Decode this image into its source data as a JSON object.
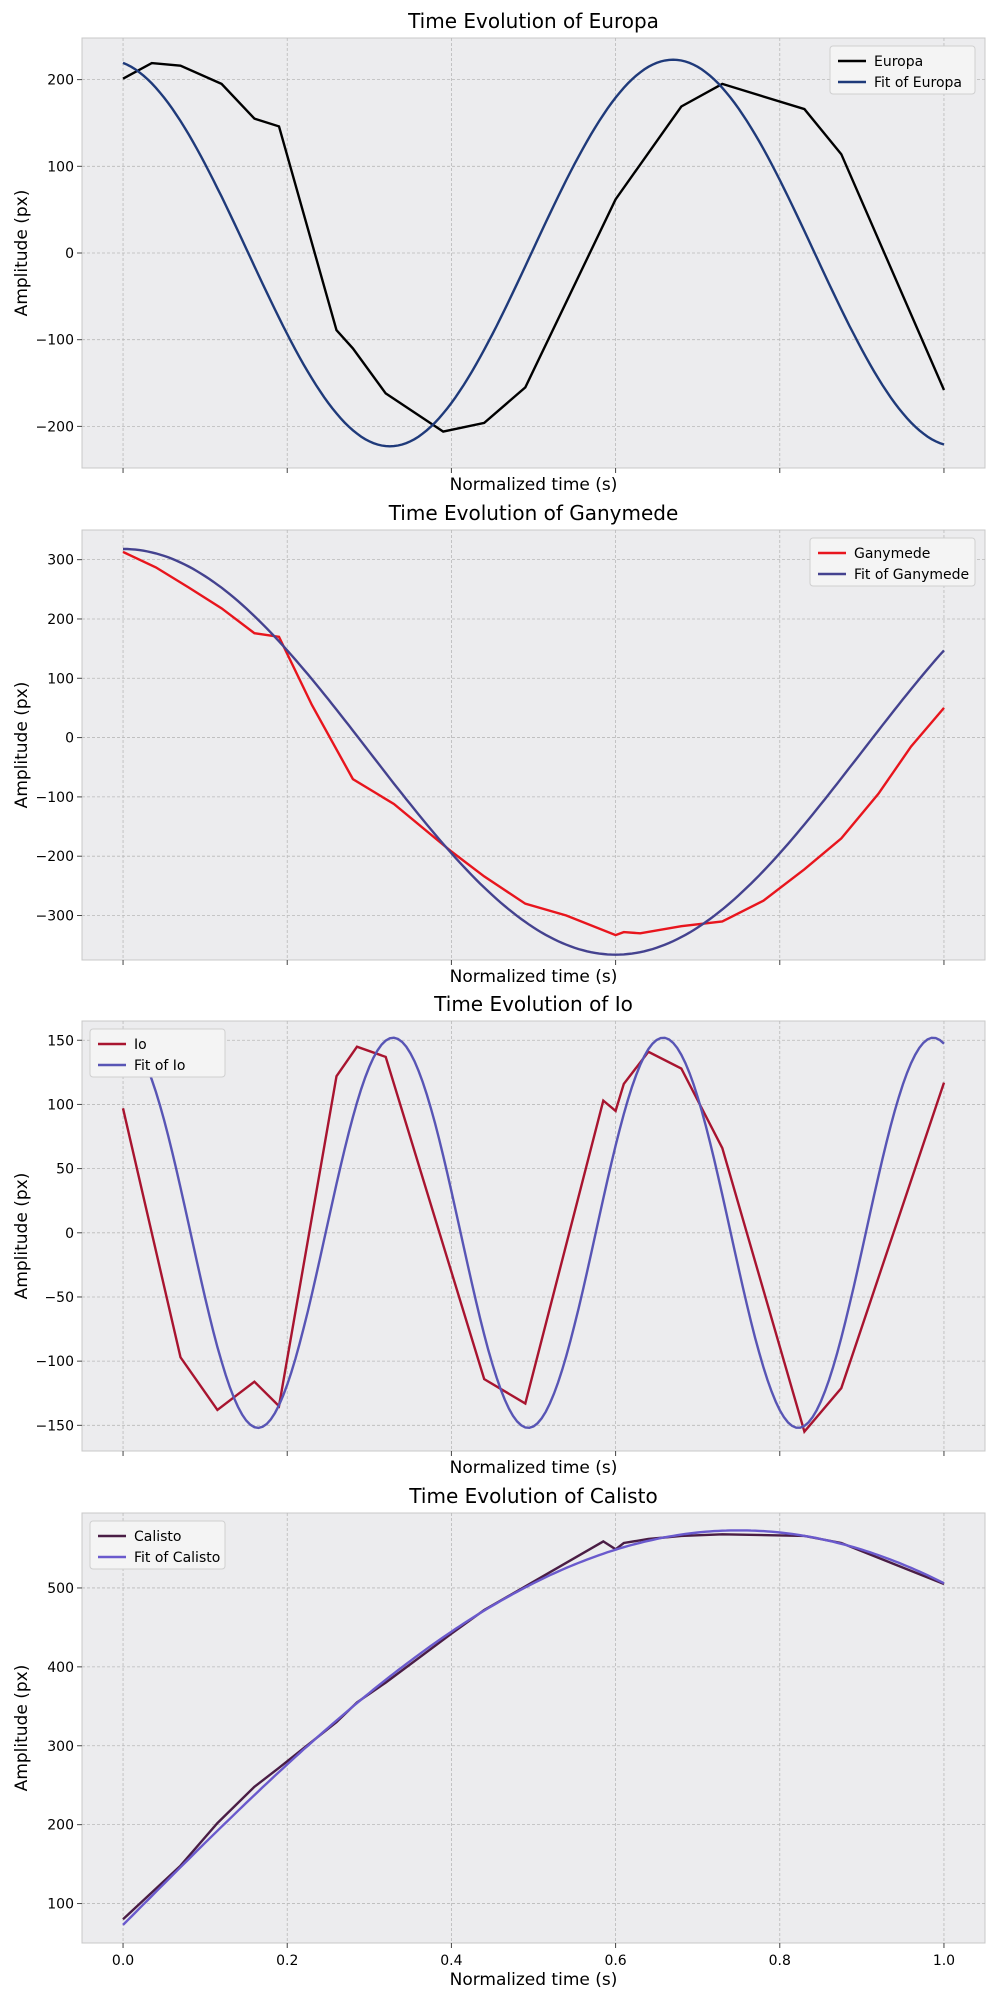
{
  "chart_data": [
    {
      "type": "line",
      "title": "Time Evolution of Europa",
      "xlabel": "Normalized time (s)",
      "ylabel": "Amplitude (px)",
      "xlim": [
        -0.05,
        1.05
      ],
      "ylim": [
        -248,
        248
      ],
      "x_ticks": [
        0.0,
        0.2,
        0.4,
        0.6,
        0.8,
        1.0
      ],
      "x_tick_labels": [
        "",
        "",
        "",
        "",
        "",
        ""
      ],
      "y_ticks": [
        -200,
        -100,
        0,
        100,
        200
      ],
      "y_tick_labels": [
        "−200",
        "−100",
        "0",
        "100",
        "200"
      ],
      "grid": true,
      "legend_position": "upper-right",
      "series": [
        {
          "name": "Europa",
          "color": "#000000",
          "x": [
            0.0,
            0.035,
            0.07,
            0.12,
            0.16,
            0.19,
            0.26,
            0.28,
            0.32,
            0.39,
            0.44,
            0.49,
            0.6,
            0.68,
            0.73,
            0.83,
            0.875,
            1.0
          ],
          "y": [
            201,
            219,
            216,
            195,
            155,
            146,
            -89,
            -110,
            -162,
            -206,
            -196,
            -155,
            62,
            169,
            195,
            166,
            114,
            -158
          ]
        },
        {
          "name": "Fit of Europa",
          "color": "#1f3a7a",
          "model": {
            "A": 223,
            "period": 0.69,
            "phase": -0.106,
            "offset": 0
          }
        }
      ]
    },
    {
      "type": "line",
      "title": "Time Evolution of Ganymede",
      "xlabel": "Normalized time (s)",
      "ylabel": "Amplitude (px)",
      "xlim": [
        -0.05,
        1.05
      ],
      "ylim": [
        -375,
        350
      ],
      "x_ticks": [
        0.0,
        0.2,
        0.4,
        0.6,
        0.8,
        1.0
      ],
      "x_tick_labels": [
        "",
        "",
        "",
        "",
        "",
        ""
      ],
      "y_ticks": [
        -300,
        -200,
        -100,
        0,
        100,
        200,
        300
      ],
      "y_tick_labels": [
        "−300",
        "−200",
        "−100",
        "0",
        "100",
        "200",
        "300"
      ],
      "grid": true,
      "legend_position": "upper-right",
      "series": [
        {
          "name": "Ganymede",
          "color": "#e8151d",
          "x": [
            0.0,
            0.04,
            0.08,
            0.12,
            0.16,
            0.19,
            0.23,
            0.28,
            0.33,
            0.4,
            0.44,
            0.49,
            0.54,
            0.6,
            0.61,
            0.63,
            0.68,
            0.73,
            0.78,
            0.83,
            0.875,
            0.92,
            0.96,
            1.0
          ],
          "y": [
            313,
            287,
            253,
            218,
            176,
            170,
            55,
            -70,
            -112,
            -192,
            -234,
            -280,
            -300,
            -333,
            -328,
            -330,
            -318,
            -310,
            -275,
            -222,
            -170,
            -95,
            -15,
            50
          ]
        },
        {
          "name": "Fit of Ganymede",
          "color": "#44428f",
          "model": {
            "A": 342,
            "period": 1.2,
            "phase": 0.0,
            "offset": -24
          }
        }
      ]
    },
    {
      "type": "line",
      "title": "Time Evolution of Io",
      "xlabel": "Normalized time (s)",
      "ylabel": "Amplitude (px)",
      "xlim": [
        -0.05,
        1.05
      ],
      "ylim": [
        -170,
        165
      ],
      "x_ticks": [
        0.0,
        0.2,
        0.4,
        0.6,
        0.8,
        1.0
      ],
      "x_tick_labels": [
        "",
        "",
        "",
        "",
        "",
        ""
      ],
      "y_ticks": [
        -150,
        -100,
        -50,
        0,
        50,
        100,
        150
      ],
      "y_tick_labels": [
        "−150",
        "−100",
        "−50",
        "0",
        "50",
        "100",
        "150"
      ],
      "grid": true,
      "legend_position": "upper-left",
      "series": [
        {
          "name": "Io",
          "color": "#a8142f",
          "x": [
            0.0,
            0.07,
            0.115,
            0.16,
            0.19,
            0.26,
            0.285,
            0.32,
            0.44,
            0.49,
            0.585,
            0.6,
            0.61,
            0.64,
            0.68,
            0.73,
            0.83,
            0.875,
            1.0
          ],
          "y": [
            97,
            -97,
            -138,
            -116,
            -135,
            122,
            145,
            137,
            -114,
            -133,
            103,
            95,
            116,
            141,
            128,
            66,
            -155,
            -121,
            117
          ]
        },
        {
          "name": "Fit of Io",
          "color": "#5855b5",
          "model": {
            "A": 152,
            "period": 0.329,
            "phase": 0.0,
            "offset": 0,
            "start": 0.92
          }
        }
      ]
    },
    {
      "type": "line",
      "title": "Time Evolution of Calisto",
      "xlabel": "Normalized time (s)",
      "ylabel": "Amplitude (px)",
      "xlim": [
        -0.05,
        1.05
      ],
      "ylim": [
        50,
        595
      ],
      "x_ticks": [
        0.0,
        0.2,
        0.4,
        0.6,
        0.8,
        1.0
      ],
      "x_tick_labels": [
        "0.0",
        "0.2",
        "0.4",
        "0.6",
        "0.8",
        "1.0"
      ],
      "y_ticks": [
        100,
        200,
        300,
        400,
        500
      ],
      "y_tick_labels": [
        "100",
        "200",
        "300",
        "400",
        "500"
      ],
      "grid": true,
      "legend_position": "upper-left",
      "series": [
        {
          "name": "Calisto",
          "color": "#4a1d45",
          "x": [
            0.0,
            0.07,
            0.115,
            0.16,
            0.19,
            0.26,
            0.285,
            0.32,
            0.4,
            0.44,
            0.49,
            0.585,
            0.6,
            0.61,
            0.64,
            0.68,
            0.73,
            0.83,
            0.875,
            1.0
          ],
          "y": [
            80,
            148,
            202,
            248,
            272,
            330,
            355,
            380,
            442,
            472,
            502,
            559,
            549,
            557,
            562,
            566,
            568,
            566,
            557,
            505
          ]
        },
        {
          "name": "Fit of Calisto",
          "color": "#6a5acd",
          "model": {
            "A": 500,
            "period": 3.0,
            "phase": 0.0,
            "offset": 73
          }
        }
      ]
    }
  ]
}
